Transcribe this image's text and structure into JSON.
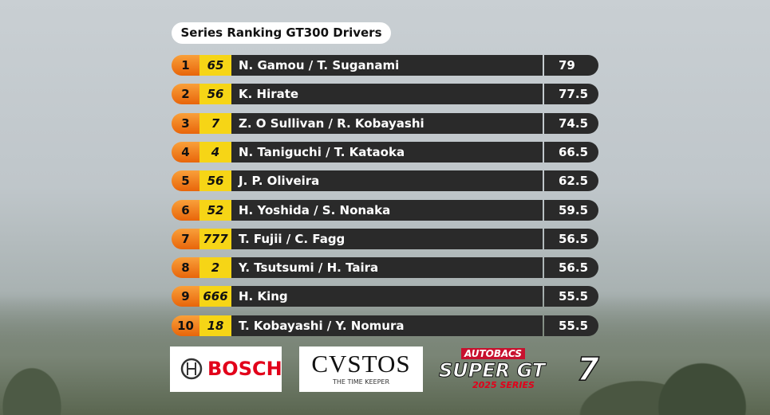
{
  "header": {
    "title": "Series Ranking GT300 Drivers"
  },
  "table": {
    "rows": [
      {
        "position": 1,
        "car": 65,
        "drivers": "N. Gamou / T. Suganami",
        "points": 79
      },
      {
        "position": 2,
        "car": 56,
        "drivers": "K. Hirate",
        "points": 77.5
      },
      {
        "position": 3,
        "car": 7,
        "drivers": "Z. O Sullivan / R. Kobayashi",
        "points": 74.5
      },
      {
        "position": 4,
        "car": 4,
        "drivers": "N. Taniguchi / T. Kataoka",
        "points": 66.5
      },
      {
        "position": 5,
        "car": 56,
        "drivers": "J. P. Oliveira",
        "points": 62.5
      },
      {
        "position": 6,
        "car": 52,
        "drivers": "H. Yoshida / S. Nonaka",
        "points": 59.5
      },
      {
        "position": 7,
        "car": 777,
        "drivers": "T. Fujii / C. Fagg",
        "points": 56.5
      },
      {
        "position": 8,
        "car": 2,
        "drivers": "Y. Tsutsumi / H. Taira",
        "points": 56.5
      },
      {
        "position": 9,
        "car": 666,
        "drivers": "H. King",
        "points": 55.5
      },
      {
        "position": 10,
        "car": 18,
        "drivers": "T. Kobayashi / Y. Nomura",
        "points": 55.5
      }
    ]
  },
  "sponsors": {
    "bosch": "BOSCH",
    "cvstos": "CVSTOS",
    "cvstos_tagline": "THE TIME KEEPER",
    "autobacs": "AUTOBACS",
    "supergt": "SUPER GT",
    "supergt_number": "7",
    "series": "2025 SERIES"
  }
}
